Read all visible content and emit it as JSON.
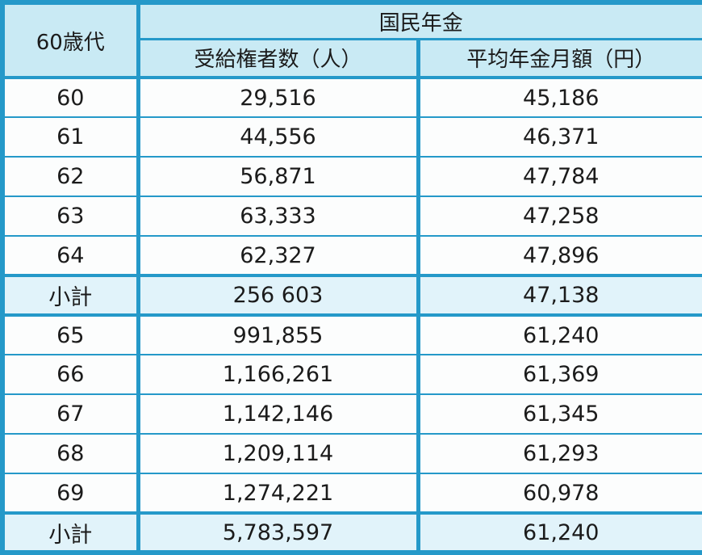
{
  "colors": {
    "border": "#2599c9",
    "header_bg": "#c9eaf4",
    "subtotal_bg": "#e1f3fa",
    "row_bg": "#fcfdfd"
  },
  "chart_data": {
    "type": "table",
    "title": "国民年金",
    "corner_header": "60歳代",
    "column_headers": [
      "受給権者数（人）",
      "平均年金月額（円）"
    ],
    "rows": [
      [
        "60",
        "29,516",
        "45,186"
      ],
      [
        "61",
        "44,556",
        "46,371"
      ],
      [
        "62",
        "56,871",
        "47,784"
      ],
      [
        "63",
        "63,333",
        "47,258"
      ],
      [
        "64",
        "62,327",
        "47,896"
      ],
      [
        "小計",
        "256 603",
        "47,138"
      ],
      [
        "65",
        "991,855",
        "61,240"
      ],
      [
        "66",
        "1,166,261",
        "61,369"
      ],
      [
        "67",
        "1,142,146",
        "61,345"
      ],
      [
        "68",
        "1,209,114",
        "61,293"
      ],
      [
        "69",
        "1,274,221",
        "60,978"
      ],
      [
        "小計",
        "5,783,597",
        "61,240"
      ]
    ],
    "subtotal_row_indexes": [
      5,
      11
    ]
  }
}
